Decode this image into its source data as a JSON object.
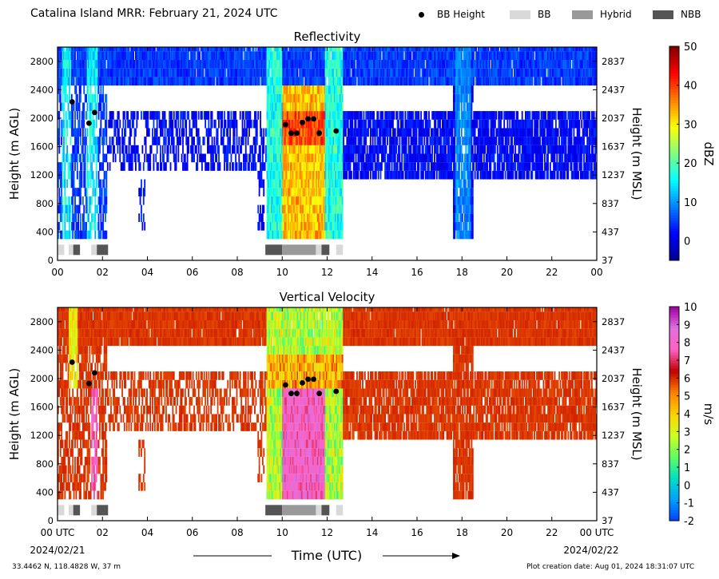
{
  "header": {
    "title": "Catalina Island MRR:  February 21, 2024 UTC",
    "legend": [
      {
        "label": "BB Height",
        "kind": "dot",
        "color": "#000000"
      },
      {
        "label": "BB",
        "kind": "box",
        "color": "#d9d9d9"
      },
      {
        "label": "Hybrid",
        "kind": "box",
        "color": "#999999"
      },
      {
        "label": "NBB",
        "kind": "box",
        "color": "#555555"
      }
    ]
  },
  "footer": {
    "coords": "33.4462 N, 118.4828 W, 37 m",
    "creation_date": "Plot creation date: Aug 01, 2024 18:31:07 UTC"
  },
  "xaxis": {
    "label": "Time (UTC)",
    "ticks": [
      0,
      2,
      4,
      6,
      8,
      10,
      12,
      14,
      16,
      18,
      20,
      22,
      24
    ],
    "tick_labels_top": [
      "00",
      "02",
      "04",
      "06",
      "08",
      "10",
      "12",
      "14",
      "16",
      "18",
      "20",
      "22",
      "00"
    ],
    "tick_labels_bottom": [
      "00 UTC",
      "02",
      "04",
      "06",
      "08",
      "10",
      "12",
      "14",
      "16",
      "18",
      "20",
      "22",
      "00 UTC"
    ],
    "start_date": "2024/02/21",
    "end_date": "2024/02/22"
  },
  "chart_data": [
    {
      "type": "heatmap",
      "title": "Reflectivity",
      "xlabel": "",
      "ylabel": "Height (m AGL)",
      "ylabel_right": "Height (m MSL)",
      "xlim": [
        0,
        24
      ],
      "ylim": [
        0,
        3000
      ],
      "yticks": [
        0,
        400,
        800,
        1200,
        1600,
        2000,
        2400,
        2800
      ],
      "yticks_right": [
        37,
        437,
        837,
        1237,
        1637,
        2037,
        2437,
        2837
      ],
      "colorbar": {
        "label": "dBZ",
        "min": -5,
        "max": 50,
        "ticks": [
          0,
          10,
          20,
          30,
          40,
          50
        ],
        "colors": [
          "#00008f",
          "#0000ff",
          "#0080ff",
          "#00ffff",
          "#80ff80",
          "#ffff00",
          "#ff8000",
          "#ff0000",
          "#800000"
        ]
      },
      "bright_band_heights": [
        {
          "t": 0.65,
          "h": 2230
        },
        {
          "t": 1.4,
          "h": 1930
        },
        {
          "t": 1.65,
          "h": 2080
        },
        {
          "t": 10.15,
          "h": 1910
        },
        {
          "t": 10.4,
          "h": 1790
        },
        {
          "t": 10.65,
          "h": 1790
        },
        {
          "t": 10.9,
          "h": 1940
        },
        {
          "t": 11.15,
          "h": 1990
        },
        {
          "t": 11.4,
          "h": 1990
        },
        {
          "t": 11.65,
          "h": 1790
        },
        {
          "t": 12.4,
          "h": 1820
        }
      ],
      "bb_classification": [
        {
          "t0": 0.0,
          "t1": 0.3,
          "class": "BB"
        },
        {
          "t0": 0.5,
          "t1": 0.7,
          "class": "BB"
        },
        {
          "t0": 0.7,
          "t1": 1.0,
          "class": "NBB"
        },
        {
          "t0": 1.5,
          "t1": 1.75,
          "class": "BB"
        },
        {
          "t0": 1.75,
          "t1": 2.25,
          "class": "NBB"
        },
        {
          "t0": 9.25,
          "t1": 10.0,
          "class": "NBB"
        },
        {
          "t0": 10.0,
          "t1": 11.5,
          "class": "Hybrid"
        },
        {
          "t0": 11.5,
          "t1": 11.75,
          "class": "BB"
        },
        {
          "t0": 11.75,
          "t1": 12.1,
          "class": "NBB"
        },
        {
          "t0": 12.4,
          "t1": 12.7,
          "class": "BB"
        }
      ]
    },
    {
      "type": "heatmap",
      "title": "Vertical Velocity",
      "xlabel": "Time (UTC)",
      "ylabel": "Height (m AGL)",
      "ylabel_right": "Height (m MSL)",
      "xlim": [
        0,
        24
      ],
      "ylim": [
        0,
        3000
      ],
      "yticks": [
        0,
        400,
        800,
        1200,
        1600,
        2000,
        2400,
        2800
      ],
      "yticks_right": [
        37,
        437,
        837,
        1237,
        1637,
        2037,
        2437,
        2837
      ],
      "colorbar": {
        "label": "m/s",
        "min": -2,
        "max": 10,
        "ticks": [
          -2,
          -1,
          0,
          1,
          2,
          3,
          4,
          5,
          6,
          7,
          8,
          9,
          10
        ],
        "colors": [
          "#0040ff",
          "#00a0ff",
          "#00e0c0",
          "#60ff60",
          "#d0ff20",
          "#ffd000",
          "#ff8000",
          "#c00000",
          "#ff60c0",
          "#e070e0",
          "#a000a0"
        ]
      },
      "bright_band_heights": [
        {
          "t": 0.65,
          "h": 2230
        },
        {
          "t": 1.4,
          "h": 1930
        },
        {
          "t": 1.65,
          "h": 2080
        },
        {
          "t": 10.15,
          "h": 1910
        },
        {
          "t": 10.4,
          "h": 1790
        },
        {
          "t": 10.65,
          "h": 1790
        },
        {
          "t": 10.9,
          "h": 1940
        },
        {
          "t": 11.15,
          "h": 1990
        },
        {
          "t": 11.4,
          "h": 1990
        },
        {
          "t": 11.65,
          "h": 1790
        },
        {
          "t": 12.4,
          "h": 1820
        }
      ],
      "bb_classification": [
        {
          "t0": 0.0,
          "t1": 0.3,
          "class": "BB"
        },
        {
          "t0": 0.5,
          "t1": 0.7,
          "class": "BB"
        },
        {
          "t0": 0.7,
          "t1": 1.0,
          "class": "NBB"
        },
        {
          "t0": 1.5,
          "t1": 1.75,
          "class": "BB"
        },
        {
          "t0": 1.75,
          "t1": 2.25,
          "class": "NBB"
        },
        {
          "t0": 9.25,
          "t1": 10.0,
          "class": "NBB"
        },
        {
          "t0": 10.0,
          "t1": 11.5,
          "class": "Hybrid"
        },
        {
          "t0": 11.5,
          "t1": 11.75,
          "class": "BB"
        },
        {
          "t0": 11.75,
          "t1": 12.1,
          "class": "NBB"
        },
        {
          "t0": 12.4,
          "t1": 12.7,
          "class": "BB"
        }
      ]
    }
  ]
}
